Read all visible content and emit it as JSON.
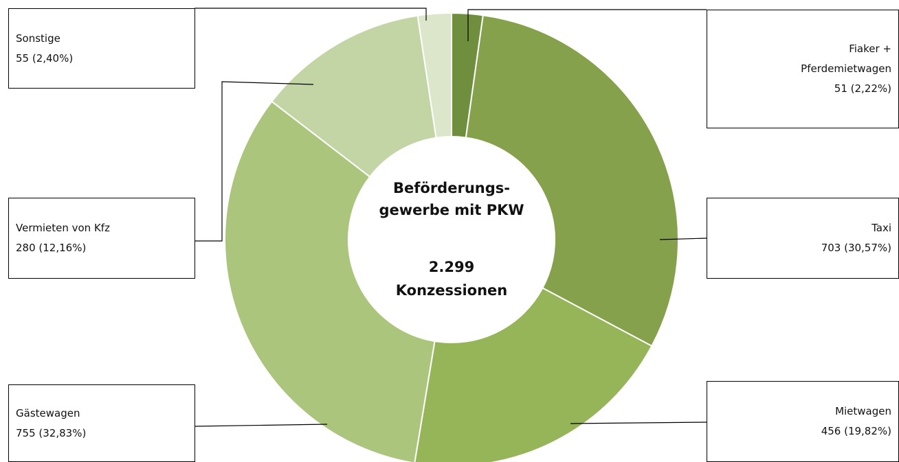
{
  "chart_data": {
    "type": "donut",
    "title": "Beförderungs-\ngewerbe mit PKW",
    "total": "2.299",
    "total_label": "Konzessionen",
    "categories": [
      "Fiaker + Pferdemietwagen",
      "Taxi",
      "Mietwagen",
      "Gästewagen",
      "Vermieten von Kfz",
      "Sonstige"
    ],
    "values": [
      51,
      703,
      456,
      755,
      280,
      55
    ],
    "value_labels": [
      "51 (2,22%)",
      "703 (30,57%)",
      "456 (19,82%)",
      "755 (32,83%)",
      "280 (12,16%)",
      "55 (2,40%)"
    ],
    "colors": [
      "#6f8f3e",
      "#85a14c",
      "#96b458",
      "#abc57c",
      "#c3d5a4",
      "#dbe6ca"
    ]
  }
}
